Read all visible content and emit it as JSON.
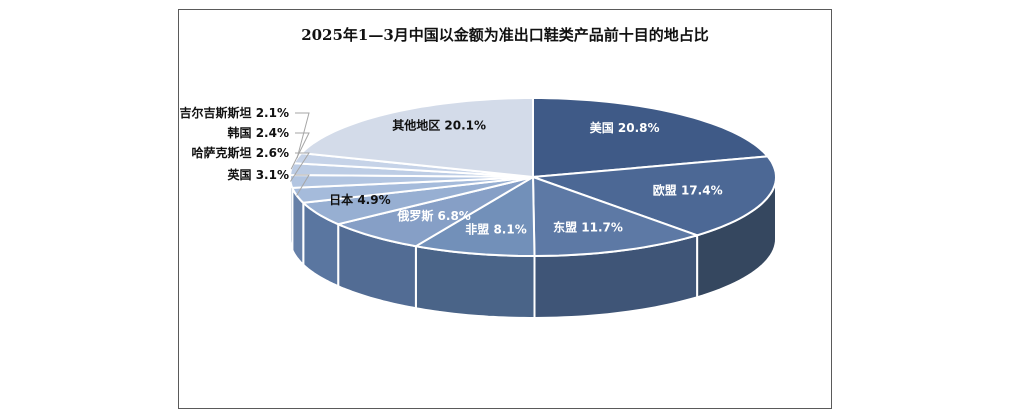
{
  "chart_data": {
    "type": "pie",
    "title": "2025年1—3月中国以金额为准出口鞋类产品前十目的地占比",
    "slices": [
      {
        "label": "美国",
        "value": 20.8,
        "display": "20.8%"
      },
      {
        "label": "欧盟",
        "value": 17.4,
        "display": "17.4%"
      },
      {
        "label": "东盟",
        "value": 11.7,
        "display": "11.7%"
      },
      {
        "label": "非盟",
        "value": 8.1,
        "display": "8.1%"
      },
      {
        "label": "俄罗斯",
        "value": 6.8,
        "display": "6.8%"
      },
      {
        "label": "日本",
        "value": 4.9,
        "display": "4.9%"
      },
      {
        "label": "英国",
        "value": 3.1,
        "display": "3.1%"
      },
      {
        "label": "哈萨克斯坦",
        "value": 2.6,
        "display": "2.6%"
      },
      {
        "label": "韩国",
        "value": 2.4,
        "display": "2.4%"
      },
      {
        "label": "吉尔吉斯斯坦",
        "value": 2.1,
        "display": "2.1%"
      },
      {
        "label": "其他地区",
        "value": 20.1,
        "display": "20.1%"
      }
    ],
    "legend": "none",
    "style": "3d-pie"
  }
}
